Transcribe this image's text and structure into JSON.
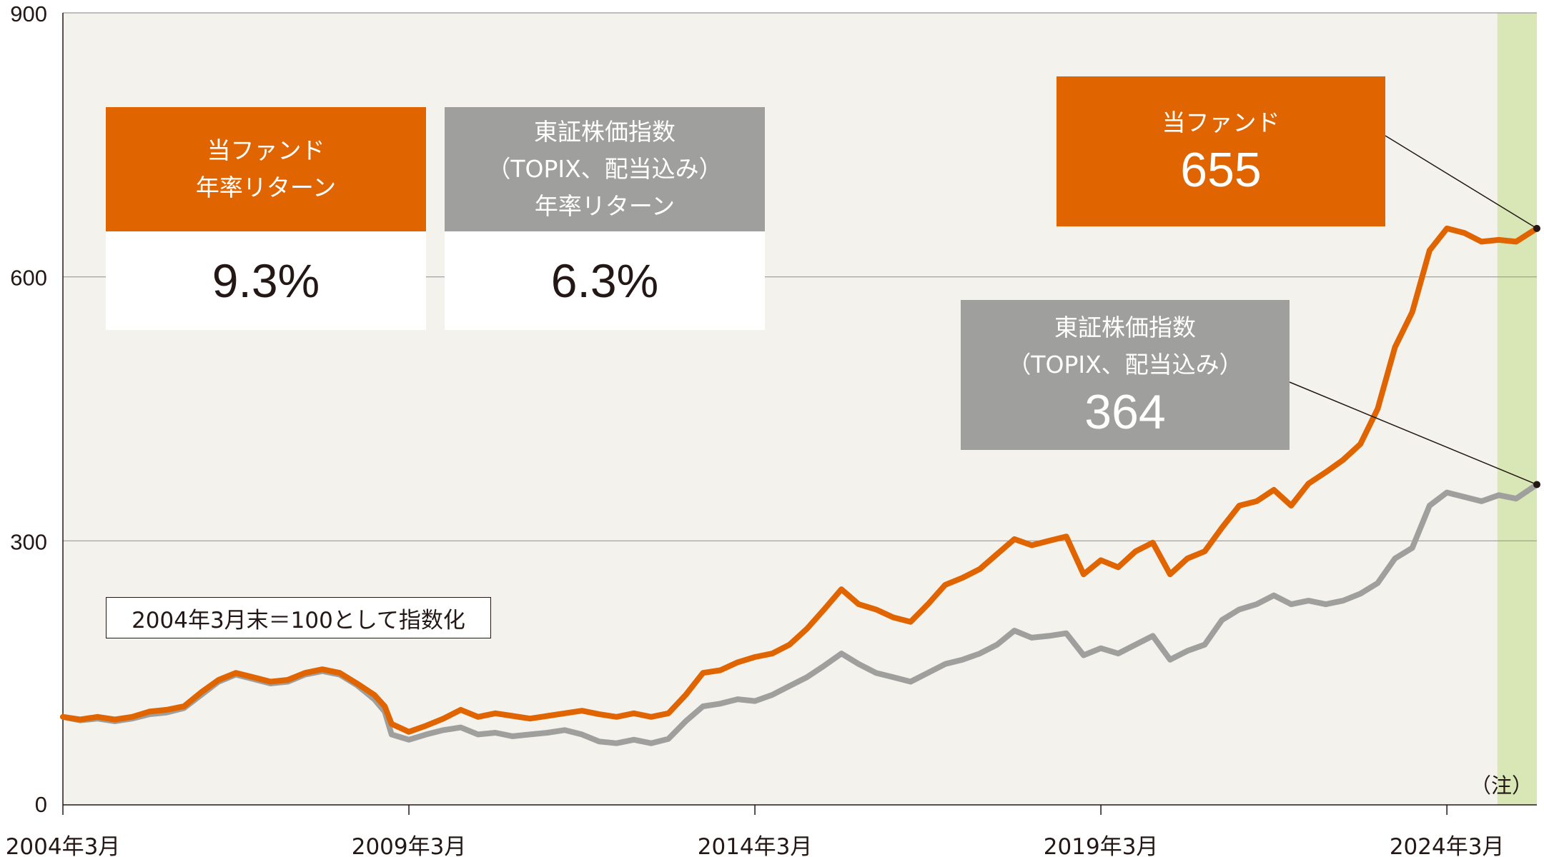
{
  "chart_data": {
    "type": "line",
    "ylim": [
      0,
      900
    ],
    "yticks": [
      "0",
      "300",
      "600",
      "900"
    ],
    "xticks": [
      "2004年3月",
      "2009年3月",
      "2014年3月",
      "2019年3月",
      "2024年3月"
    ],
    "xrange": [
      2004.25,
      2025.55
    ],
    "highlight_band": {
      "from": 2024.98,
      "to": 2025.55,
      "label": "（注）"
    },
    "colors": {
      "fund": "#e06400",
      "topix": "#9fa09e",
      "band": "#d9e6b5",
      "plot_bg": "#f4f2ed"
    },
    "series": [
      {
        "name": "当ファンド",
        "color": "#e06400",
        "points": [
          [
            2004.25,
            100
          ],
          [
            2004.5,
            97
          ],
          [
            2004.75,
            100
          ],
          [
            2005.0,
            97
          ],
          [
            2005.25,
            100
          ],
          [
            2005.5,
            106
          ],
          [
            2005.75,
            108
          ],
          [
            2006.0,
            112
          ],
          [
            2006.25,
            128
          ],
          [
            2006.5,
            142
          ],
          [
            2006.75,
            150
          ],
          [
            2007.0,
            145
          ],
          [
            2007.25,
            140
          ],
          [
            2007.5,
            142
          ],
          [
            2007.75,
            150
          ],
          [
            2008.0,
            154
          ],
          [
            2008.25,
            150
          ],
          [
            2008.5,
            138
          ],
          [
            2008.75,
            125
          ],
          [
            2008.9,
            112
          ],
          [
            2009.0,
            92
          ],
          [
            2009.25,
            83
          ],
          [
            2009.5,
            90
          ],
          [
            2009.75,
            98
          ],
          [
            2010.0,
            108
          ],
          [
            2010.25,
            100
          ],
          [
            2010.5,
            104
          ],
          [
            2010.75,
            101
          ],
          [
            2011.0,
            98
          ],
          [
            2011.25,
            101
          ],
          [
            2011.5,
            104
          ],
          [
            2011.75,
            107
          ],
          [
            2012.0,
            103
          ],
          [
            2012.25,
            100
          ],
          [
            2012.5,
            104
          ],
          [
            2012.75,
            100
          ],
          [
            2013.0,
            104
          ],
          [
            2013.25,
            125
          ],
          [
            2013.5,
            150
          ],
          [
            2013.75,
            153
          ],
          [
            2014.0,
            162
          ],
          [
            2014.25,
            168
          ],
          [
            2014.5,
            172
          ],
          [
            2014.75,
            182
          ],
          [
            2015.0,
            200
          ],
          [
            2015.25,
            222
          ],
          [
            2015.5,
            245
          ],
          [
            2015.75,
            228
          ],
          [
            2016.0,
            222
          ],
          [
            2016.25,
            213
          ],
          [
            2016.5,
            208
          ],
          [
            2016.75,
            228
          ],
          [
            2017.0,
            250
          ],
          [
            2017.25,
            258
          ],
          [
            2017.5,
            268
          ],
          [
            2017.75,
            285
          ],
          [
            2018.0,
            302
          ],
          [
            2018.25,
            295
          ],
          [
            2018.5,
            300
          ],
          [
            2018.75,
            305
          ],
          [
            2019.0,
            262
          ],
          [
            2019.25,
            278
          ],
          [
            2019.5,
            270
          ],
          [
            2019.75,
            288
          ],
          [
            2020.0,
            298
          ],
          [
            2020.25,
            262
          ],
          [
            2020.5,
            280
          ],
          [
            2020.75,
            288
          ],
          [
            2021.0,
            315
          ],
          [
            2021.25,
            340
          ],
          [
            2021.5,
            345
          ],
          [
            2021.75,
            358
          ],
          [
            2022.0,
            340
          ],
          [
            2022.25,
            365
          ],
          [
            2022.5,
            378
          ],
          [
            2022.75,
            392
          ],
          [
            2023.0,
            410
          ],
          [
            2023.25,
            450
          ],
          [
            2023.5,
            520
          ],
          [
            2023.75,
            560
          ],
          [
            2024.0,
            630
          ],
          [
            2024.25,
            655
          ],
          [
            2024.5,
            650
          ],
          [
            2024.75,
            640
          ],
          [
            2025.0,
            642
          ],
          [
            2025.25,
            640
          ],
          [
            2025.55,
            655
          ]
        ]
      },
      {
        "name": "東証株価指数（TOPIX、配当込み）",
        "color": "#9fa09e",
        "points": [
          [
            2004.25,
            100
          ],
          [
            2004.5,
            96
          ],
          [
            2004.75,
            98
          ],
          [
            2005.0,
            95
          ],
          [
            2005.25,
            98
          ],
          [
            2005.5,
            103
          ],
          [
            2005.75,
            105
          ],
          [
            2006.0,
            110
          ],
          [
            2006.25,
            125
          ],
          [
            2006.5,
            140
          ],
          [
            2006.75,
            148
          ],
          [
            2007.0,
            143
          ],
          [
            2007.25,
            138
          ],
          [
            2007.5,
            140
          ],
          [
            2007.75,
            148
          ],
          [
            2008.0,
            152
          ],
          [
            2008.25,
            148
          ],
          [
            2008.5,
            136
          ],
          [
            2008.75,
            120
          ],
          [
            2008.9,
            106
          ],
          [
            2009.0,
            80
          ],
          [
            2009.25,
            74
          ],
          [
            2009.5,
            80
          ],
          [
            2009.75,
            85
          ],
          [
            2010.0,
            88
          ],
          [
            2010.25,
            80
          ],
          [
            2010.5,
            82
          ],
          [
            2010.75,
            78
          ],
          [
            2011.0,
            80
          ],
          [
            2011.25,
            82
          ],
          [
            2011.5,
            85
          ],
          [
            2011.75,
            80
          ],
          [
            2012.0,
            72
          ],
          [
            2012.25,
            70
          ],
          [
            2012.5,
            74
          ],
          [
            2012.75,
            70
          ],
          [
            2013.0,
            75
          ],
          [
            2013.25,
            95
          ],
          [
            2013.5,
            112
          ],
          [
            2013.75,
            115
          ],
          [
            2014.0,
            120
          ],
          [
            2014.25,
            118
          ],
          [
            2014.5,
            125
          ],
          [
            2014.75,
            135
          ],
          [
            2015.0,
            145
          ],
          [
            2015.25,
            158
          ],
          [
            2015.5,
            172
          ],
          [
            2015.75,
            160
          ],
          [
            2016.0,
            150
          ],
          [
            2016.25,
            145
          ],
          [
            2016.5,
            140
          ],
          [
            2016.75,
            150
          ],
          [
            2017.0,
            160
          ],
          [
            2017.25,
            165
          ],
          [
            2017.5,
            172
          ],
          [
            2017.75,
            182
          ],
          [
            2018.0,
            198
          ],
          [
            2018.25,
            190
          ],
          [
            2018.5,
            192
          ],
          [
            2018.75,
            195
          ],
          [
            2019.0,
            170
          ],
          [
            2019.25,
            178
          ],
          [
            2019.5,
            172
          ],
          [
            2019.75,
            182
          ],
          [
            2020.0,
            192
          ],
          [
            2020.25,
            165
          ],
          [
            2020.5,
            175
          ],
          [
            2020.75,
            182
          ],
          [
            2021.0,
            210
          ],
          [
            2021.25,
            222
          ],
          [
            2021.5,
            228
          ],
          [
            2021.75,
            238
          ],
          [
            2022.0,
            228
          ],
          [
            2022.25,
            232
          ],
          [
            2022.5,
            228
          ],
          [
            2022.75,
            232
          ],
          [
            2023.0,
            240
          ],
          [
            2023.25,
            252
          ],
          [
            2023.5,
            280
          ],
          [
            2023.75,
            292
          ],
          [
            2024.0,
            340
          ],
          [
            2024.25,
            355
          ],
          [
            2024.5,
            350
          ],
          [
            2024.75,
            345
          ],
          [
            2025.0,
            352
          ],
          [
            2025.25,
            348
          ],
          [
            2025.55,
            364
          ]
        ]
      }
    ]
  },
  "summary_boxes": {
    "fund_header": [
      "当ファンド",
      "年率リターン"
    ],
    "fund_value": "9.3%",
    "topix_header": [
      "東証株価指数",
      "（TOPIX、配当込み）",
      "年率リターン"
    ],
    "topix_value": "6.3%"
  },
  "callouts": {
    "fund_label": "当ファンド",
    "fund_value": "655",
    "topix_label": [
      "東証株価指数",
      "（TOPIX、配当込み）"
    ],
    "topix_value": "364"
  },
  "note": "2004年3月末＝100として指数化"
}
